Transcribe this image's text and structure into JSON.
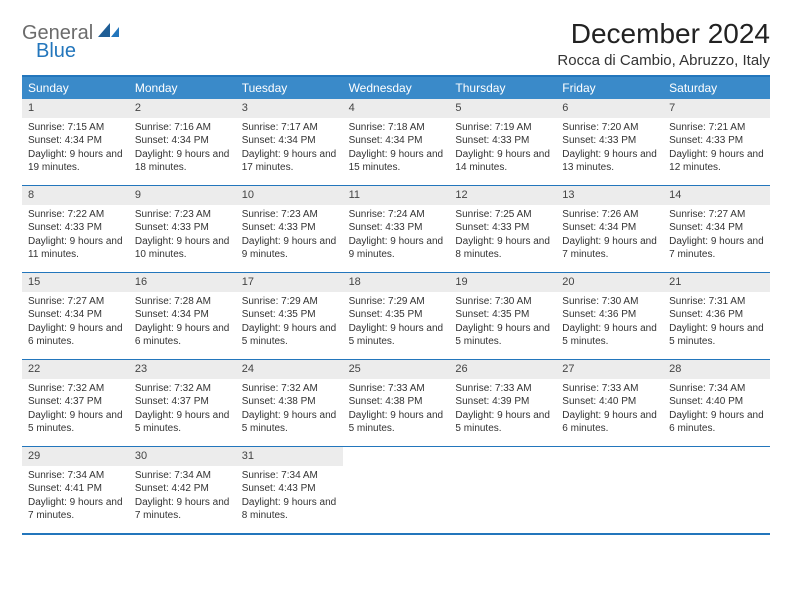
{
  "logo": {
    "text1": "General",
    "text2": "Blue"
  },
  "title": "December 2024",
  "location": "Rocca di Cambio, Abruzzo, Italy",
  "colors": {
    "header_bg": "#3a8ac9",
    "border": "#2376bc",
    "daynum_bg": "#ececec",
    "text": "#333333"
  },
  "fonts": {
    "title_size": 28,
    "location_size": 15,
    "header_size": 12,
    "cell_size": 10
  },
  "day_headers": [
    "Sunday",
    "Monday",
    "Tuesday",
    "Wednesday",
    "Thursday",
    "Friday",
    "Saturday"
  ],
  "weeks": [
    [
      {
        "n": "1",
        "sunrise": "Sunrise: 7:15 AM",
        "sunset": "Sunset: 4:34 PM",
        "daylight": "Daylight: 9 hours and 19 minutes."
      },
      {
        "n": "2",
        "sunrise": "Sunrise: 7:16 AM",
        "sunset": "Sunset: 4:34 PM",
        "daylight": "Daylight: 9 hours and 18 minutes."
      },
      {
        "n": "3",
        "sunrise": "Sunrise: 7:17 AM",
        "sunset": "Sunset: 4:34 PM",
        "daylight": "Daylight: 9 hours and 17 minutes."
      },
      {
        "n": "4",
        "sunrise": "Sunrise: 7:18 AM",
        "sunset": "Sunset: 4:34 PM",
        "daylight": "Daylight: 9 hours and 15 minutes."
      },
      {
        "n": "5",
        "sunrise": "Sunrise: 7:19 AM",
        "sunset": "Sunset: 4:33 PM",
        "daylight": "Daylight: 9 hours and 14 minutes."
      },
      {
        "n": "6",
        "sunrise": "Sunrise: 7:20 AM",
        "sunset": "Sunset: 4:33 PM",
        "daylight": "Daylight: 9 hours and 13 minutes."
      },
      {
        "n": "7",
        "sunrise": "Sunrise: 7:21 AM",
        "sunset": "Sunset: 4:33 PM",
        "daylight": "Daylight: 9 hours and 12 minutes."
      }
    ],
    [
      {
        "n": "8",
        "sunrise": "Sunrise: 7:22 AM",
        "sunset": "Sunset: 4:33 PM",
        "daylight": "Daylight: 9 hours and 11 minutes."
      },
      {
        "n": "9",
        "sunrise": "Sunrise: 7:23 AM",
        "sunset": "Sunset: 4:33 PM",
        "daylight": "Daylight: 9 hours and 10 minutes."
      },
      {
        "n": "10",
        "sunrise": "Sunrise: 7:23 AM",
        "sunset": "Sunset: 4:33 PM",
        "daylight": "Daylight: 9 hours and 9 minutes."
      },
      {
        "n": "11",
        "sunrise": "Sunrise: 7:24 AM",
        "sunset": "Sunset: 4:33 PM",
        "daylight": "Daylight: 9 hours and 9 minutes."
      },
      {
        "n": "12",
        "sunrise": "Sunrise: 7:25 AM",
        "sunset": "Sunset: 4:33 PM",
        "daylight": "Daylight: 9 hours and 8 minutes."
      },
      {
        "n": "13",
        "sunrise": "Sunrise: 7:26 AM",
        "sunset": "Sunset: 4:34 PM",
        "daylight": "Daylight: 9 hours and 7 minutes."
      },
      {
        "n": "14",
        "sunrise": "Sunrise: 7:27 AM",
        "sunset": "Sunset: 4:34 PM",
        "daylight": "Daylight: 9 hours and 7 minutes."
      }
    ],
    [
      {
        "n": "15",
        "sunrise": "Sunrise: 7:27 AM",
        "sunset": "Sunset: 4:34 PM",
        "daylight": "Daylight: 9 hours and 6 minutes."
      },
      {
        "n": "16",
        "sunrise": "Sunrise: 7:28 AM",
        "sunset": "Sunset: 4:34 PM",
        "daylight": "Daylight: 9 hours and 6 minutes."
      },
      {
        "n": "17",
        "sunrise": "Sunrise: 7:29 AM",
        "sunset": "Sunset: 4:35 PM",
        "daylight": "Daylight: 9 hours and 5 minutes."
      },
      {
        "n": "18",
        "sunrise": "Sunrise: 7:29 AM",
        "sunset": "Sunset: 4:35 PM",
        "daylight": "Daylight: 9 hours and 5 minutes."
      },
      {
        "n": "19",
        "sunrise": "Sunrise: 7:30 AM",
        "sunset": "Sunset: 4:35 PM",
        "daylight": "Daylight: 9 hours and 5 minutes."
      },
      {
        "n": "20",
        "sunrise": "Sunrise: 7:30 AM",
        "sunset": "Sunset: 4:36 PM",
        "daylight": "Daylight: 9 hours and 5 minutes."
      },
      {
        "n": "21",
        "sunrise": "Sunrise: 7:31 AM",
        "sunset": "Sunset: 4:36 PM",
        "daylight": "Daylight: 9 hours and 5 minutes."
      }
    ],
    [
      {
        "n": "22",
        "sunrise": "Sunrise: 7:32 AM",
        "sunset": "Sunset: 4:37 PM",
        "daylight": "Daylight: 9 hours and 5 minutes."
      },
      {
        "n": "23",
        "sunrise": "Sunrise: 7:32 AM",
        "sunset": "Sunset: 4:37 PM",
        "daylight": "Daylight: 9 hours and 5 minutes."
      },
      {
        "n": "24",
        "sunrise": "Sunrise: 7:32 AM",
        "sunset": "Sunset: 4:38 PM",
        "daylight": "Daylight: 9 hours and 5 minutes."
      },
      {
        "n": "25",
        "sunrise": "Sunrise: 7:33 AM",
        "sunset": "Sunset: 4:38 PM",
        "daylight": "Daylight: 9 hours and 5 minutes."
      },
      {
        "n": "26",
        "sunrise": "Sunrise: 7:33 AM",
        "sunset": "Sunset: 4:39 PM",
        "daylight": "Daylight: 9 hours and 5 minutes."
      },
      {
        "n": "27",
        "sunrise": "Sunrise: 7:33 AM",
        "sunset": "Sunset: 4:40 PM",
        "daylight": "Daylight: 9 hours and 6 minutes."
      },
      {
        "n": "28",
        "sunrise": "Sunrise: 7:34 AM",
        "sunset": "Sunset: 4:40 PM",
        "daylight": "Daylight: 9 hours and 6 minutes."
      }
    ],
    [
      {
        "n": "29",
        "sunrise": "Sunrise: 7:34 AM",
        "sunset": "Sunset: 4:41 PM",
        "daylight": "Daylight: 9 hours and 7 minutes."
      },
      {
        "n": "30",
        "sunrise": "Sunrise: 7:34 AM",
        "sunset": "Sunset: 4:42 PM",
        "daylight": "Daylight: 9 hours and 7 minutes."
      },
      {
        "n": "31",
        "sunrise": "Sunrise: 7:34 AM",
        "sunset": "Sunset: 4:43 PM",
        "daylight": "Daylight: 9 hours and 8 minutes."
      },
      null,
      null,
      null,
      null
    ]
  ]
}
